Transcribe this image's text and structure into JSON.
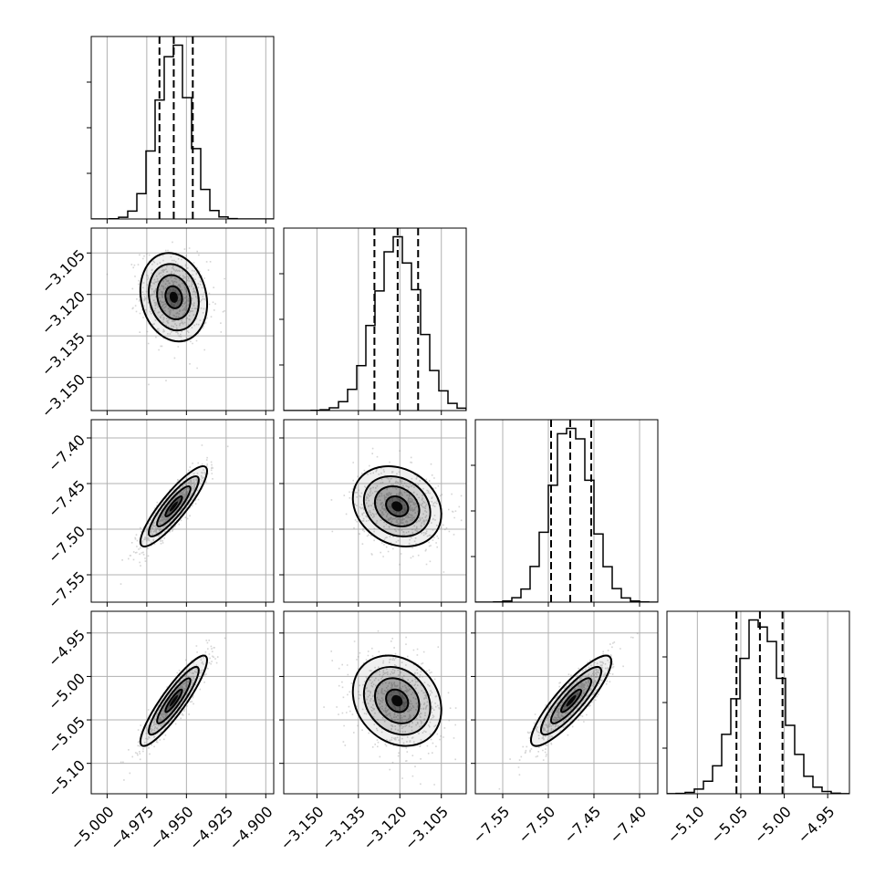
{
  "chart_data": {
    "type": "corner",
    "parameters": [
      {
        "range": [
          -5.01,
          -4.895
        ],
        "ticks": [
          -5.0,
          -4.975,
          -4.95,
          -4.925,
          -4.9
        ],
        "tick_labels": [
          "−5.000",
          "−4.975",
          "−4.950",
          "−4.925",
          "−4.900"
        ],
        "quantiles": [
          -4.967,
          -4.958,
          -4.946
        ],
        "mean": -4.958,
        "sigma": 0.0105
      },
      {
        "range": [
          -3.162,
          -3.096
        ],
        "ticks": [
          -3.15,
          -3.135,
          -3.12,
          -3.105
        ],
        "tick_labels": [
          "−3.150",
          "−3.135",
          "−3.120",
          "−3.105"
        ],
        "quantiles": [
          -3.1292,
          -3.1208,
          -3.1134
        ],
        "mean": -3.121,
        "sigma": 0.008
      },
      {
        "range": [
          -7.58,
          -7.38
        ],
        "ticks": [
          -7.55,
          -7.5,
          -7.45,
          -7.4
        ],
        "tick_labels": [
          "−7.55",
          "−7.50",
          "−7.45",
          "−7.40"
        ],
        "quantiles": [
          -7.497,
          -7.476,
          -7.453
        ],
        "mean": -7.475,
        "sigma": 0.022
      },
      {
        "range": [
          -5.135,
          -4.925
        ],
        "ticks": [
          -5.1,
          -5.05,
          -5.0,
          -4.95
        ],
        "tick_labels": [
          "−5.10",
          "−5.05",
          "−5.00",
          "−4.95"
        ],
        "quantiles": [
          -5.055,
          -5.028,
          -5.002
        ],
        "mean": -5.028,
        "sigma": 0.026
      }
    ],
    "correlations": [
      [
        1.0,
        -0.15,
        0.88,
        0.9
      ],
      [
        -0.15,
        1.0,
        -0.2,
        -0.2
      ],
      [
        0.88,
        -0.2,
        1.0,
        0.87
      ],
      [
        0.9,
        -0.2,
        0.87,
        1.0
      ]
    ],
    "histogram_bins": 20,
    "contour_levels_sigma": [
      0.5,
      1.0,
      1.5,
      2.0
    ],
    "grid": true,
    "colors": {
      "density": "#000000",
      "scatter": "#888888",
      "grid": "#b0b0b0"
    }
  }
}
